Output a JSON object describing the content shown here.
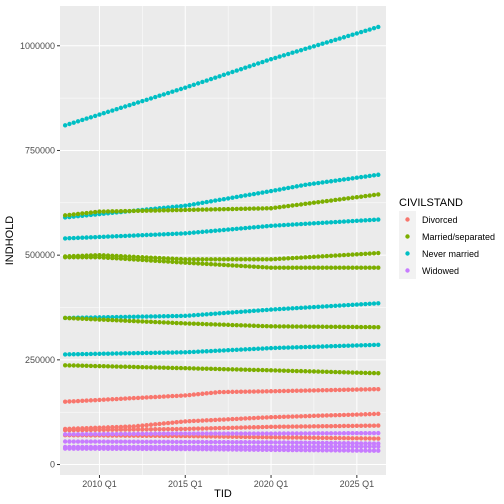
{
  "chart_data": {
    "type": "scatter",
    "xlabel": "TID",
    "ylabel": "INDHOLD",
    "x_tick_labels": [
      "2010 Q1",
      "2015 Q1",
      "2020 Q1",
      "2025 Q1"
    ],
    "x_ticks": [
      2010,
      2015,
      2020,
      2025
    ],
    "xlim": [
      2007.7,
      2026.7
    ],
    "y_tick_labels": [
      "0",
      "250000",
      "500000",
      "750000",
      "1000000"
    ],
    "y_ticks": [
      0,
      250000,
      500000,
      750000,
      1000000
    ],
    "ylim": [
      -25000,
      1095000
    ],
    "x_start": 2008.0,
    "x_step": 0.25,
    "n_points": 74,
    "grid": true,
    "legend": {
      "title": "CIVILSTAND",
      "position": "right",
      "entries": [
        "Divorced",
        "Married/separated",
        "Never married",
        "Widowed"
      ]
    },
    "colors": {
      "Divorced": "#F8766D",
      "Married/separated": "#7CAE00",
      "Never married": "#00BFC4",
      "Widowed": "#C77CFF"
    },
    "series": [
      {
        "category": "Never married",
        "anchors": [
          [
            2008,
            810000
          ],
          [
            2015,
            900000
          ],
          [
            2020,
            968000
          ],
          [
            2026.25,
            1045000
          ]
        ]
      },
      {
        "category": "Never married",
        "anchors": [
          [
            2008,
            590000
          ],
          [
            2015,
            618000
          ],
          [
            2020,
            653000
          ],
          [
            2022,
            668000
          ],
          [
            2026.25,
            692000
          ]
        ]
      },
      {
        "category": "Never married",
        "anchors": [
          [
            2008,
            540000
          ],
          [
            2015,
            552000
          ],
          [
            2020,
            570000
          ],
          [
            2026.25,
            585000
          ]
        ]
      },
      {
        "category": "Never married",
        "anchors": [
          [
            2008,
            350000
          ],
          [
            2015,
            355000
          ],
          [
            2020,
            370000
          ],
          [
            2026.25,
            385000
          ]
        ]
      },
      {
        "category": "Never married",
        "anchors": [
          [
            2008,
            263000
          ],
          [
            2015,
            268000
          ],
          [
            2020,
            278000
          ],
          [
            2026.25,
            286000
          ]
        ]
      },
      {
        "category": "Married/separated",
        "anchors": [
          [
            2008,
            595000
          ],
          [
            2010,
            604000
          ],
          [
            2015,
            608000
          ],
          [
            2020,
            612000
          ],
          [
            2026.25,
            645000
          ]
        ]
      },
      {
        "category": "Married/separated",
        "anchors": [
          [
            2008,
            497000
          ],
          [
            2010,
            500000
          ],
          [
            2015,
            490000
          ],
          [
            2020,
            490000
          ],
          [
            2026.25,
            505000
          ]
        ]
      },
      {
        "category": "Married/separated",
        "anchors": [
          [
            2008,
            495000
          ],
          [
            2010,
            495000
          ],
          [
            2015,
            482000
          ],
          [
            2020,
            470000
          ],
          [
            2026.25,
            470000
          ]
        ]
      },
      {
        "category": "Married/separated",
        "anchors": [
          [
            2008,
            350000
          ],
          [
            2015,
            337000
          ],
          [
            2020,
            330000
          ],
          [
            2026.25,
            328000
          ]
        ]
      },
      {
        "category": "Married/separated",
        "anchors": [
          [
            2008,
            237000
          ],
          [
            2015,
            230000
          ],
          [
            2020,
            225000
          ],
          [
            2026.25,
            218000
          ]
        ]
      },
      {
        "category": "Divorced",
        "anchors": [
          [
            2008,
            150000
          ],
          [
            2015,
            165000
          ],
          [
            2017,
            173000
          ],
          [
            2020,
            175000
          ],
          [
            2026.25,
            180000
          ]
        ]
      },
      {
        "category": "Divorced",
        "anchors": [
          [
            2008,
            85000
          ],
          [
            2012,
            91000
          ],
          [
            2015,
            103000
          ],
          [
            2020,
            113000
          ],
          [
            2026.25,
            121000
          ]
        ]
      },
      {
        "category": "Divorced",
        "anchors": [
          [
            2008,
            82000
          ],
          [
            2015,
            85000
          ],
          [
            2020,
            90000
          ],
          [
            2026.25,
            93000
          ]
        ]
      },
      {
        "category": "Divorced",
        "anchors": [
          [
            2008,
            70000
          ],
          [
            2015,
            68000
          ],
          [
            2020,
            65000
          ],
          [
            2026.25,
            62000
          ]
        ]
      },
      {
        "category": "Widowed",
        "anchors": [
          [
            2008,
            72000
          ],
          [
            2015,
            74000
          ],
          [
            2020,
            74000
          ],
          [
            2026.25,
            75000
          ]
        ]
      },
      {
        "category": "Widowed",
        "anchors": [
          [
            2008,
            55000
          ],
          [
            2015,
            54000
          ],
          [
            2020,
            53000
          ],
          [
            2026.25,
            50000
          ]
        ]
      },
      {
        "category": "Widowed",
        "anchors": [
          [
            2008,
            42000
          ],
          [
            2015,
            42000
          ],
          [
            2020,
            42000
          ],
          [
            2026.25,
            43000
          ]
        ]
      },
      {
        "category": "Widowed",
        "anchors": [
          [
            2008,
            38000
          ],
          [
            2015,
            37000
          ],
          [
            2020,
            35000
          ],
          [
            2026.25,
            33000
          ]
        ]
      }
    ]
  }
}
